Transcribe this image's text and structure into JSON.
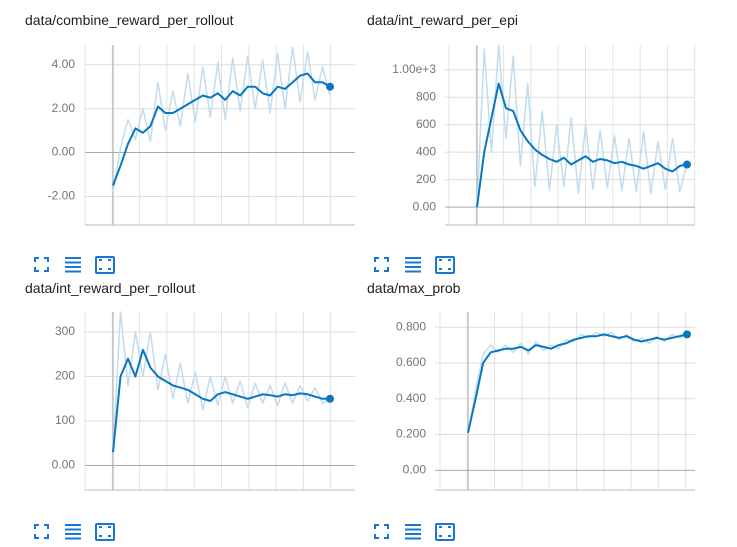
{
  "chart_data": [
    {
      "type": "line",
      "title": "data/combine_reward_per_rollout",
      "ylim": [
        -3.3,
        4.9
      ],
      "yticks": [
        {
          "value": -2,
          "label": "-2.00"
        },
        {
          "value": 0,
          "label": "0.00"
        },
        {
          "value": 2,
          "label": "2.00"
        },
        {
          "value": 4,
          "label": "4.00"
        }
      ],
      "series": [
        {
          "color": "#c2dcef",
          "values": [
            -1.8,
            0.2,
            1.5,
            0.6,
            2.0,
            0.5,
            3.2,
            1.0,
            2.8,
            1.2,
            3.6,
            1.4,
            3.9,
            1.6,
            4.1,
            1.5,
            4.3,
            1.9,
            4.4,
            2.0,
            4.2,
            1.8,
            4.5,
            2.0,
            4.8,
            2.3,
            4.6,
            2.4,
            3.9,
            2.6
          ]
        },
        {
          "color": "#0877bd",
          "values": [
            -1.5,
            -0.6,
            0.4,
            1.1,
            0.9,
            1.2,
            2.1,
            1.8,
            1.8,
            2.0,
            2.2,
            2.4,
            2.6,
            2.5,
            2.7,
            2.4,
            2.8,
            2.6,
            3.0,
            3.0,
            2.7,
            2.6,
            3.0,
            2.9,
            3.2,
            3.5,
            3.6,
            3.2,
            3.2,
            3.0
          ]
        }
      ]
    },
    {
      "type": "line",
      "title": "data/int_reward_per_epi",
      "ylim": [
        -130,
        1180
      ],
      "yticks": [
        {
          "value": 0,
          "label": "0.00"
        },
        200,
        400,
        600,
        800,
        {
          "value": 1000,
          "label": "1.00e+3"
        }
      ],
      "series": [
        {
          "color": "#c2dcef",
          "values": [
            0,
            1150,
            400,
            1180,
            500,
            1100,
            300,
            900,
            150,
            700,
            120,
            600,
            150,
            650,
            100,
            600,
            130,
            560,
            140,
            520,
            120,
            500,
            110,
            550,
            100,
            480,
            130,
            500,
            110,
            320
          ]
        },
        {
          "color": "#0877bd",
          "values": [
            0,
            400,
            650,
            900,
            720,
            700,
            560,
            480,
            420,
            380,
            350,
            330,
            360,
            310,
            340,
            370,
            330,
            350,
            340,
            320,
            330,
            310,
            300,
            280,
            300,
            320,
            280,
            260,
            300,
            310
          ]
        }
      ]
    },
    {
      "type": "line",
      "title": "data/int_reward_per_rollout",
      "ylim": [
        -55,
        345
      ],
      "yticks": [
        {
          "value": 0,
          "label": "0.00"
        },
        100,
        200,
        300
      ],
      "series": [
        {
          "color": "#c2dcef",
          "values": [
            30,
            345,
            180,
            300,
            200,
            300,
            170,
            250,
            150,
            230,
            140,
            210,
            125,
            200,
            135,
            200,
            140,
            190,
            130,
            185,
            140,
            180,
            135,
            185,
            140,
            180,
            145,
            175,
            140,
            150
          ]
        },
        {
          "color": "#0877bd",
          "values": [
            30,
            200,
            240,
            200,
            260,
            220,
            200,
            190,
            180,
            175,
            170,
            160,
            150,
            145,
            160,
            165,
            160,
            155,
            150,
            155,
            160,
            158,
            155,
            160,
            158,
            162,
            160,
            155,
            150,
            150
          ]
        }
      ]
    },
    {
      "type": "line",
      "title": "data/max_prob",
      "ylim": [
        -0.11,
        0.885
      ],
      "yticks": [
        {
          "value": 0,
          "label": "0.00"
        },
        {
          "value": 0.2,
          "label": "0.200"
        },
        {
          "value": 0.4,
          "label": "0.400"
        },
        {
          "value": 0.6,
          "label": "0.600"
        },
        {
          "value": 0.8,
          "label": "0.800"
        }
      ],
      "series": [
        {
          "color": "#c2dcef",
          "values": [
            0.2,
            0.45,
            0.65,
            0.7,
            0.66,
            0.7,
            0.66,
            0.71,
            0.65,
            0.72,
            0.67,
            0.7,
            0.68,
            0.73,
            0.72,
            0.76,
            0.74,
            0.77,
            0.75,
            0.77,
            0.73,
            0.76,
            0.72,
            0.74,
            0.71,
            0.75,
            0.72,
            0.76,
            0.74,
            0.76
          ]
        },
        {
          "color": "#0877bd",
          "values": [
            0.21,
            0.4,
            0.6,
            0.66,
            0.67,
            0.68,
            0.68,
            0.69,
            0.67,
            0.7,
            0.69,
            0.68,
            0.7,
            0.71,
            0.73,
            0.74,
            0.75,
            0.75,
            0.76,
            0.75,
            0.74,
            0.75,
            0.73,
            0.72,
            0.73,
            0.74,
            0.73,
            0.74,
            0.75,
            0.76
          ]
        }
      ]
    }
  ]
}
